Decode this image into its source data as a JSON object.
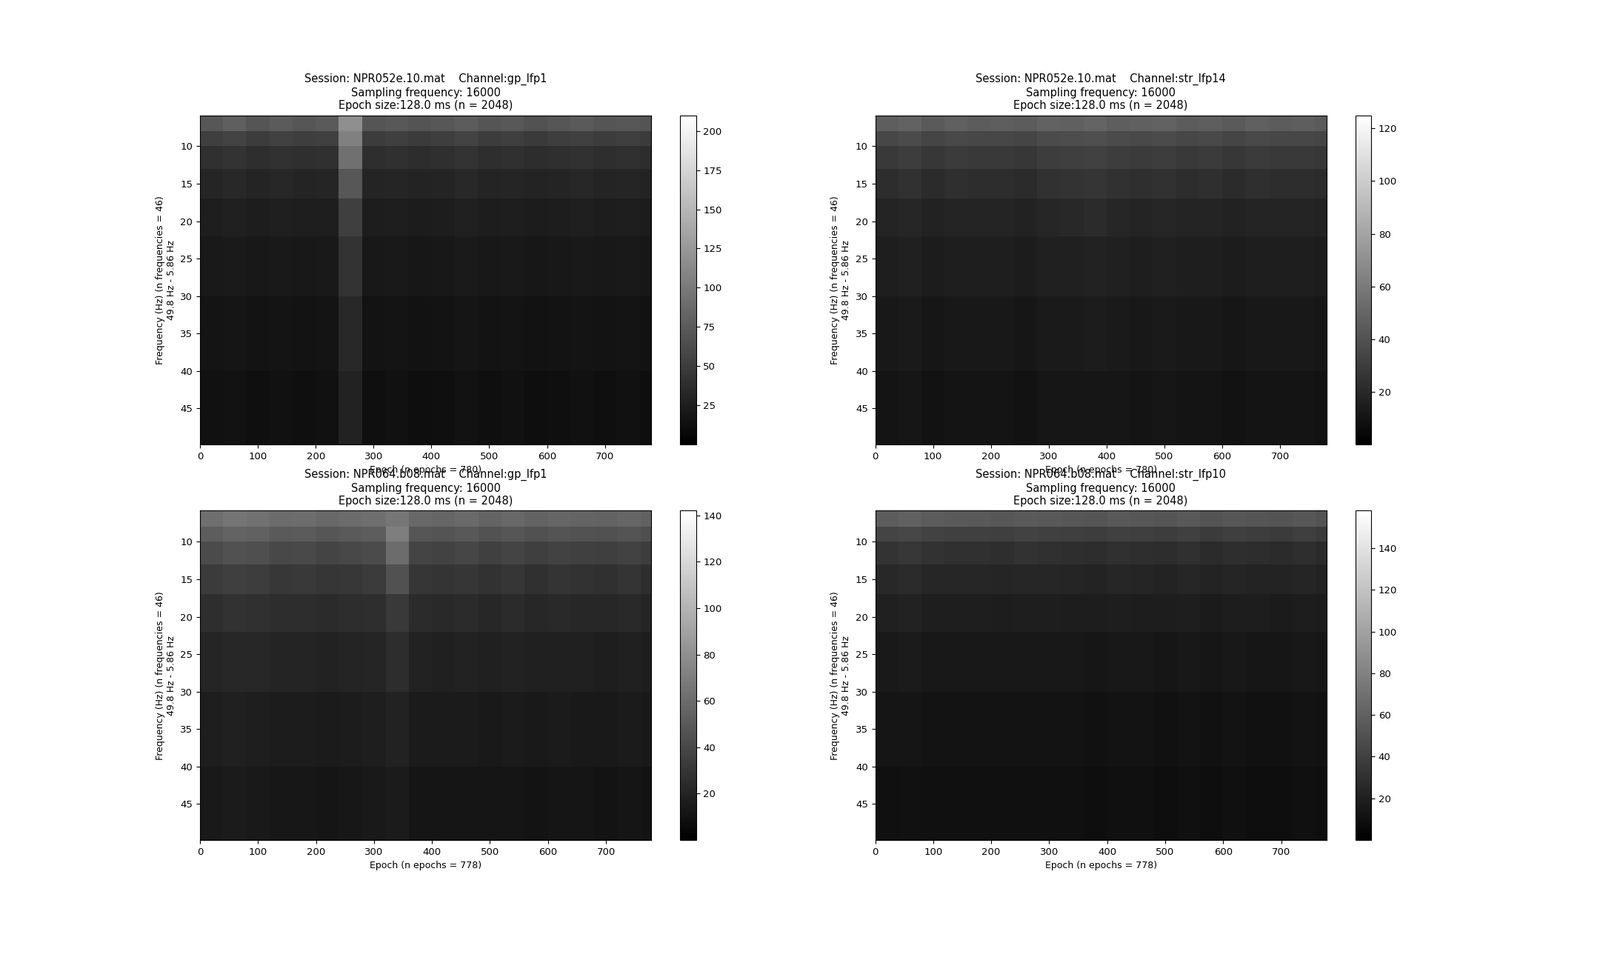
{
  "chart_data": [
    {
      "type": "heatmap",
      "title": "Session: NPR052e.10.mat    Channel:gp_lfp1\nSampling frequency: 16000\nEpoch size:128.0 ms (n = 2048)",
      "x_label": "Epoch (n epochs = 780)",
      "y_label": "Frequency (Hz) (n frequencies = 46)\n49.8 Hz - 5.86 Hz",
      "x_edges": [
        0,
        40,
        80,
        120,
        160,
        200,
        240,
        280,
        320,
        360,
        400,
        440,
        480,
        520,
        560,
        600,
        640,
        680,
        720,
        760,
        780
      ],
      "y_edges": [
        5.86,
        8,
        10,
        13,
        17,
        22,
        30,
        40,
        49.8
      ],
      "xlim": [
        0,
        780
      ],
      "xticks": [
        0,
        100,
        200,
        300,
        400,
        500,
        600,
        700
      ],
      "ylim": [
        49.8,
        5.86
      ],
      "yticks": [
        10,
        15,
        20,
        25,
        30,
        35,
        40,
        45
      ],
      "colorbar": {
        "range": [
          0,
          210
        ],
        "ticks": [
          25,
          50,
          75,
          100,
          125,
          150,
          175,
          200
        ]
      },
      "cells": [
        [
          72,
          78,
          70,
          75,
          71,
          74,
          118,
          70,
          73,
          69,
          72,
          76,
          70,
          73,
          68,
          71,
          74,
          70,
          72,
          69
        ],
        [
          52,
          55,
          50,
          54,
          51,
          53,
          105,
          50,
          52,
          49,
          51,
          55,
          50,
          52,
          48,
          51,
          53,
          50,
          52,
          49
        ],
        [
          40,
          42,
          38,
          41,
          39,
          40,
          92,
          38,
          40,
          37,
          39,
          42,
          38,
          40,
          37,
          39,
          41,
          38,
          40,
          37
        ],
        [
          31,
          33,
          30,
          32,
          30,
          31,
          72,
          30,
          31,
          29,
          30,
          33,
          30,
          31,
          29,
          30,
          32,
          30,
          31,
          29
        ],
        [
          25,
          27,
          24,
          26,
          25,
          25,
          52,
          24,
          25,
          23,
          24,
          27,
          24,
          25,
          23,
          24,
          26,
          24,
          25,
          23
        ],
        [
          21,
          22,
          20,
          21,
          20,
          21,
          42,
          20,
          21,
          19,
          20,
          22,
          20,
          21,
          19,
          20,
          21,
          20,
          21,
          19
        ],
        [
          17,
          18,
          16,
          17,
          16,
          17,
          33,
          16,
          17,
          15,
          16,
          18,
          16,
          17,
          15,
          16,
          17,
          16,
          17,
          15
        ],
        [
          14,
          15,
          13,
          14,
          13,
          14,
          28,
          13,
          14,
          12,
          13,
          15,
          13,
          14,
          12,
          13,
          14,
          13,
          14,
          12
        ]
      ]
    },
    {
      "type": "heatmap",
      "title": "Session: NPR052e.10.mat    Channel:str_lfp14\nSampling frequency: 16000\nEpoch size:128.0 ms (n = 2048)",
      "x_label": "Epoch (n epochs = 780)",
      "y_label": "Frequency (Hz) (n frequencies = 46)\n49.8 Hz - 5.86 Hz",
      "x_edges": [
        0,
        40,
        80,
        120,
        160,
        200,
        240,
        280,
        320,
        360,
        400,
        440,
        480,
        520,
        560,
        600,
        640,
        680,
        720,
        760,
        780
      ],
      "y_edges": [
        5.86,
        8,
        10,
        13,
        17,
        22,
        30,
        40,
        49.8
      ],
      "xlim": [
        0,
        780
      ],
      "xticks": [
        0,
        100,
        200,
        300,
        400,
        500,
        600,
        700
      ],
      "ylim": [
        49.8,
        5.86
      ],
      "yticks": [
        10,
        15,
        20,
        25,
        30,
        35,
        40,
        45
      ],
      "colorbar": {
        "range": [
          0,
          125
        ],
        "ticks": [
          20,
          40,
          60,
          80,
          100,
          120
        ]
      },
      "cells": [
        [
          46,
          48,
          44,
          47,
          45,
          46,
          45,
          48,
          47,
          49,
          46,
          47,
          48,
          45,
          46,
          44,
          47,
          45,
          46,
          44
        ],
        [
          35,
          37,
          34,
          36,
          35,
          35,
          34,
          37,
          38,
          39,
          37,
          36,
          37,
          35,
          36,
          34,
          36,
          35,
          35,
          34
        ],
        [
          28,
          30,
          27,
          29,
          28,
          28,
          27,
          30,
          31,
          32,
          30,
          29,
          30,
          28,
          29,
          27,
          29,
          28,
          28,
          27
        ],
        [
          22,
          24,
          21,
          23,
          22,
          22,
          21,
          24,
          25,
          26,
          24,
          23,
          24,
          22,
          23,
          21,
          23,
          22,
          22,
          21
        ],
        [
          18,
          19,
          17,
          18,
          18,
          18,
          17,
          19,
          20,
          21,
          19,
          18,
          19,
          18,
          18,
          17,
          18,
          18,
          18,
          17
        ],
        [
          15,
          16,
          14,
          15,
          15,
          15,
          14,
          16,
          16,
          17,
          16,
          15,
          16,
          15,
          15,
          14,
          15,
          15,
          15,
          14
        ],
        [
          12,
          13,
          11,
          12,
          12,
          12,
          11,
          13,
          13,
          14,
          13,
          12,
          13,
          12,
          12,
          11,
          12,
          12,
          12,
          11
        ],
        [
          10,
          11,
          9,
          10,
          10,
          10,
          9,
          11,
          11,
          11,
          11,
          10,
          11,
          10,
          10,
          9,
          10,
          10,
          10,
          9
        ]
      ]
    },
    {
      "type": "heatmap",
      "title": "Session: NPR064.b08.mat    Channel:gp_lfp1\nSampling frequency: 16000\nEpoch size:128.0 ms (n = 2048)",
      "x_label": "Epoch (n epochs = 778)",
      "y_label": "Frequency (Hz) (n frequencies = 46)\n49.8 Hz - 5.86 Hz",
      "x_edges": [
        0,
        40,
        80,
        120,
        160,
        200,
        240,
        280,
        320,
        360,
        400,
        440,
        480,
        520,
        560,
        600,
        640,
        680,
        720,
        760,
        778
      ],
      "y_edges": [
        5.86,
        8,
        10,
        13,
        17,
        22,
        30,
        40,
        49.8
      ],
      "xlim": [
        0,
        778
      ],
      "xticks": [
        0,
        100,
        200,
        300,
        400,
        500,
        600,
        700
      ],
      "ylim": [
        49.8,
        5.86
      ],
      "yticks": [
        10,
        15,
        20,
        25,
        30,
        35,
        40,
        45
      ],
      "colorbar": {
        "range": [
          0,
          142
        ],
        "ticks": [
          20,
          40,
          60,
          80,
          100,
          120,
          140
        ]
      },
      "cells": [
        [
          62,
          65,
          63,
          60,
          61,
          58,
          60,
          62,
          66,
          58,
          57,
          59,
          56,
          58,
          55,
          57,
          56,
          55,
          57,
          54
        ],
        [
          52,
          55,
          54,
          50,
          51,
          48,
          50,
          52,
          70,
          48,
          47,
          49,
          46,
          48,
          45,
          47,
          46,
          45,
          47,
          44
        ],
        [
          42,
          45,
          44,
          40,
          41,
          38,
          40,
          42,
          60,
          38,
          37,
          39,
          36,
          38,
          35,
          37,
          36,
          35,
          37,
          34
        ],
        [
          33,
          35,
          34,
          31,
          32,
          30,
          31,
          33,
          45,
          30,
          29,
          30,
          28,
          30,
          27,
          29,
          28,
          27,
          29,
          26
        ],
        [
          26,
          28,
          27,
          25,
          25,
          24,
          25,
          26,
          32,
          24,
          23,
          24,
          22,
          24,
          22,
          23,
          22,
          22,
          23,
          21
        ],
        [
          21,
          22,
          22,
          20,
          20,
          19,
          20,
          21,
          25,
          19,
          18,
          19,
          18,
          19,
          18,
          18,
          18,
          17,
          18,
          17
        ],
        [
          17,
          18,
          17,
          16,
          16,
          15,
          16,
          17,
          19,
          15,
          15,
          15,
          14,
          15,
          14,
          15,
          14,
          14,
          15,
          14
        ],
        [
          14,
          15,
          14,
          13,
          13,
          12,
          13,
          14,
          15,
          12,
          12,
          12,
          12,
          12,
          11,
          12,
          12,
          11,
          12,
          11
        ]
      ]
    },
    {
      "type": "heatmap",
      "title": "Session: NPR064.b08.mat    Channel:str_lfp10\nSampling frequency: 16000\nEpoch size:128.0 ms (n = 2048)",
      "x_label": "Epoch (n epochs = 778)",
      "y_label": "Frequency (Hz) (n frequencies = 46)\n49.8 Hz - 5.86 Hz",
      "x_edges": [
        0,
        40,
        80,
        120,
        160,
        200,
        240,
        280,
        320,
        360,
        400,
        440,
        480,
        520,
        560,
        600,
        640,
        680,
        720,
        760,
        778
      ],
      "y_edges": [
        5.86,
        8,
        10,
        13,
        17,
        22,
        30,
        40,
        49.8
      ],
      "xlim": [
        0,
        778
      ],
      "xticks": [
        0,
        100,
        200,
        300,
        400,
        500,
        600,
        700
      ],
      "ylim": [
        49.8,
        5.86
      ],
      "yticks": [
        10,
        15,
        20,
        25,
        30,
        35,
        40,
        45
      ],
      "colorbar": {
        "range": [
          0,
          158
        ],
        "ticks": [
          20,
          40,
          60,
          80,
          100,
          120,
          140
        ]
      },
      "cells": [
        [
          58,
          60,
          57,
          56,
          55,
          54,
          56,
          55,
          54,
          53,
          55,
          54,
          53,
          55,
          52,
          54,
          53,
          52,
          54,
          51
        ],
        [
          42,
          44,
          41,
          40,
          40,
          39,
          41,
          40,
          39,
          38,
          40,
          39,
          38,
          40,
          37,
          39,
          38,
          37,
          39,
          36
        ],
        [
          32,
          34,
          31,
          30,
          30,
          29,
          31,
          30,
          29,
          28,
          30,
          29,
          28,
          30,
          27,
          29,
          28,
          27,
          29,
          26
        ],
        [
          25,
          27,
          24,
          24,
          24,
          23,
          24,
          24,
          23,
          22,
          24,
          23,
          22,
          24,
          22,
          23,
          22,
          22,
          23,
          21
        ],
        [
          20,
          21,
          19,
          19,
          19,
          18,
          19,
          19,
          18,
          18,
          19,
          18,
          18,
          19,
          17,
          18,
          18,
          17,
          18,
          17
        ],
        [
          16,
          17,
          15,
          15,
          15,
          15,
          15,
          15,
          15,
          14,
          15,
          15,
          14,
          15,
          14,
          15,
          14,
          14,
          15,
          14
        ],
        [
          13,
          13,
          12,
          12,
          12,
          12,
          12,
          12,
          12,
          11,
          12,
          12,
          11,
          12,
          11,
          12,
          11,
          11,
          12,
          11
        ],
        [
          10,
          11,
          10,
          10,
          10,
          10,
          10,
          10,
          10,
          9,
          10,
          10,
          9,
          10,
          9,
          10,
          9,
          9,
          10,
          9
        ]
      ]
    }
  ]
}
